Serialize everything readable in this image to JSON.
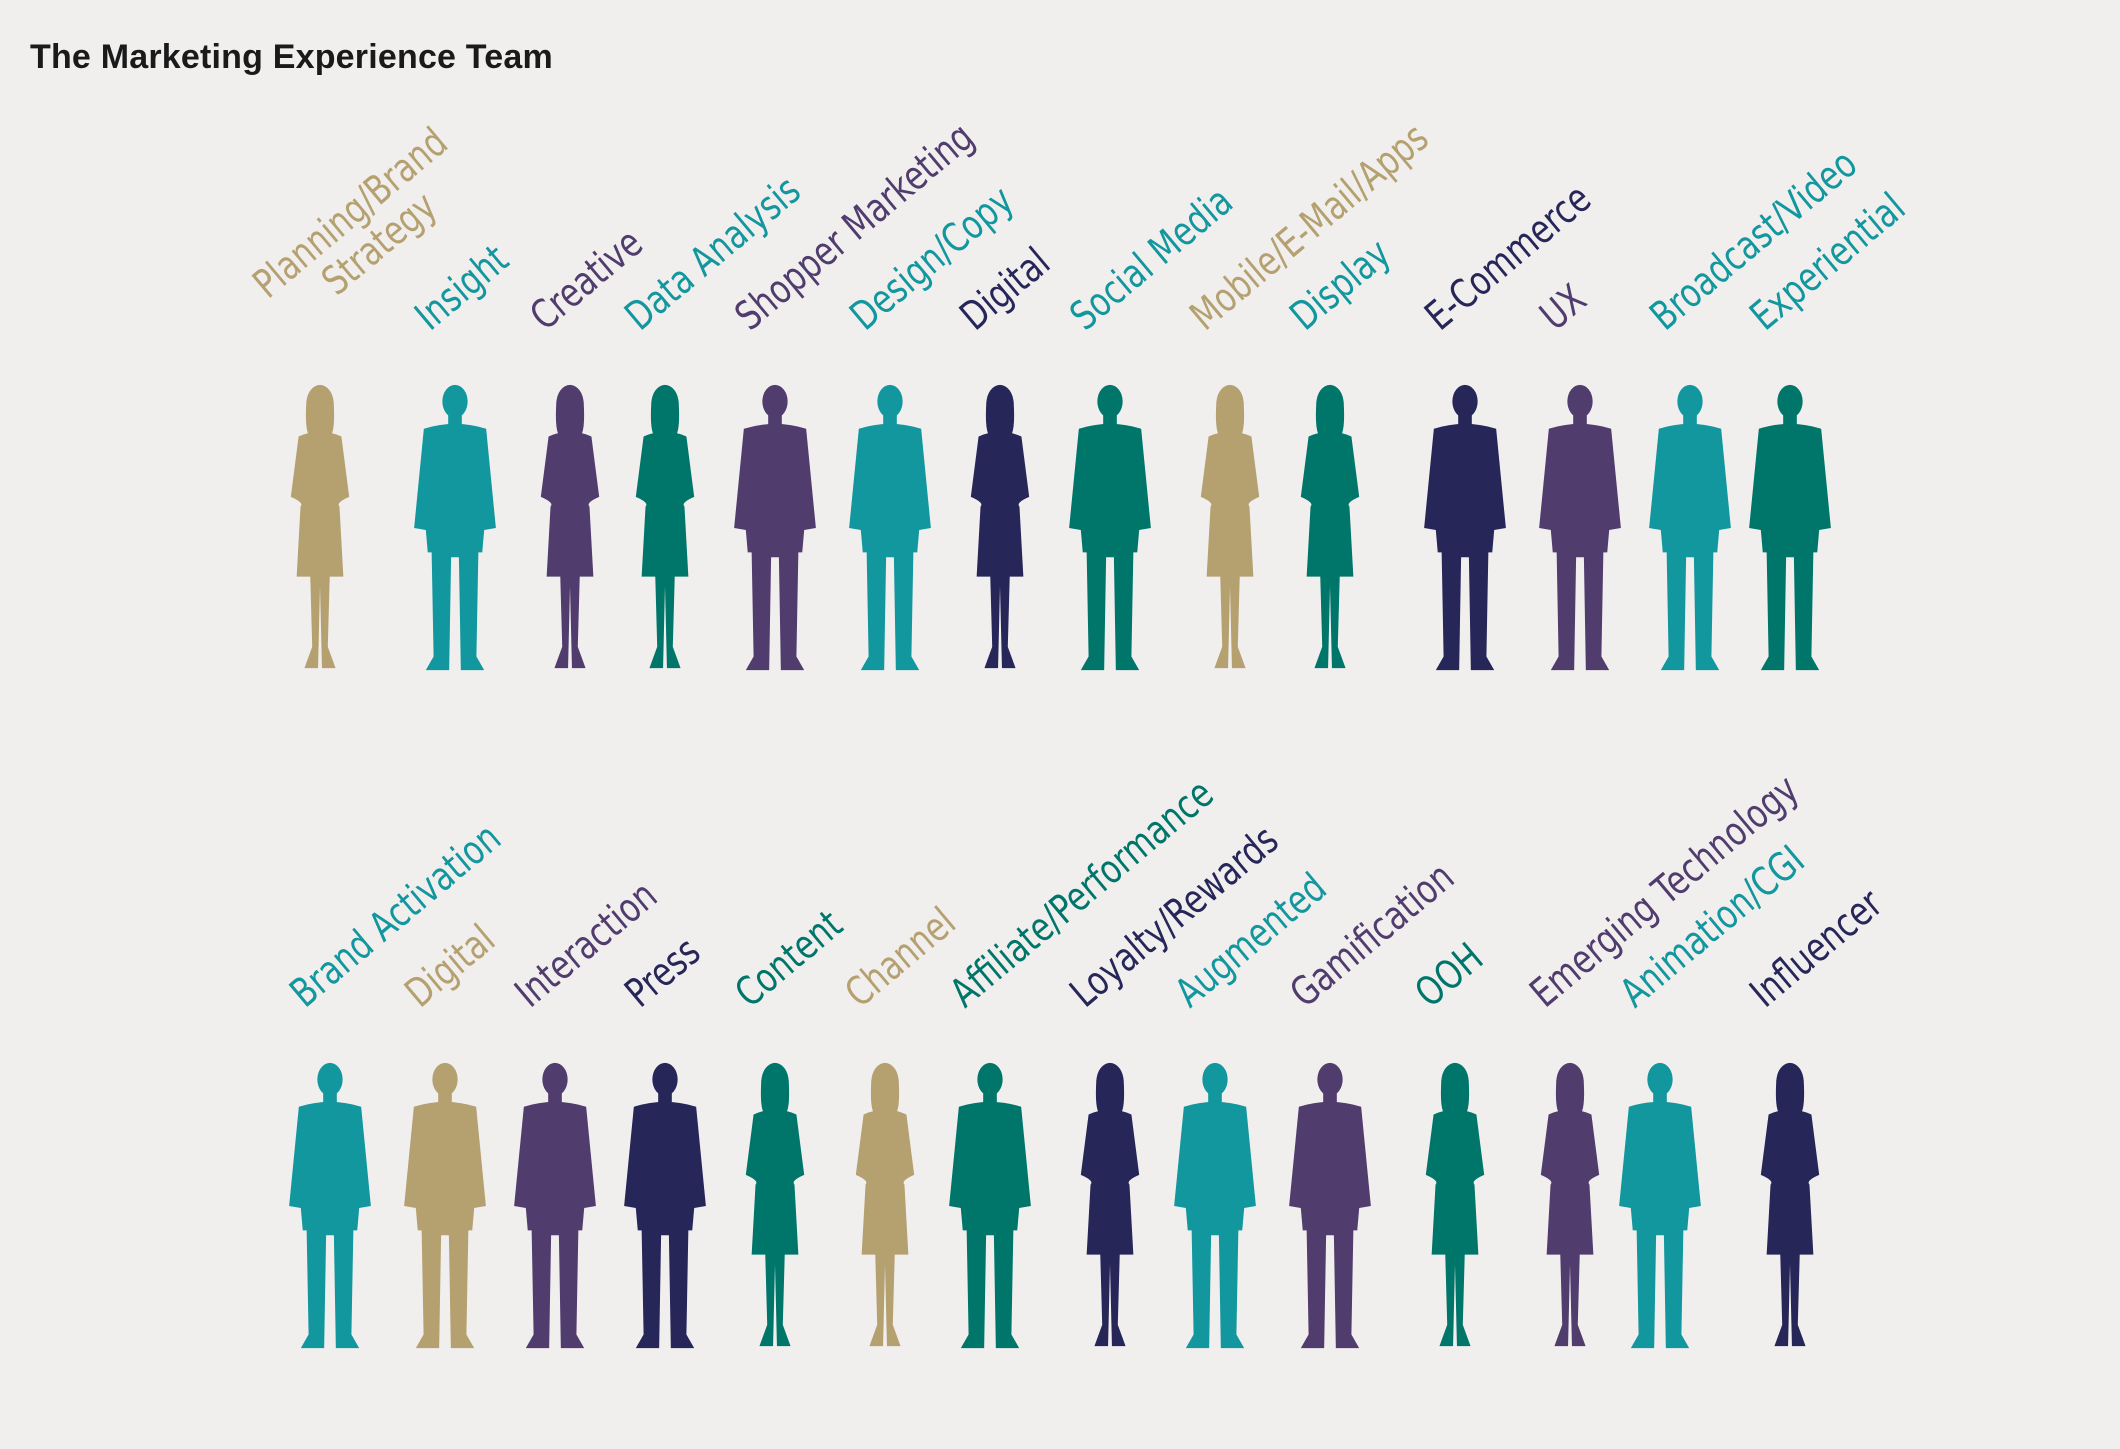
{
  "title": "The Marketing Experience Team",
  "colors": {
    "tan": "#b5a070",
    "teal": "#12979e",
    "purple": "#513c6e",
    "green": "#00766a",
    "navy": "#262659"
  },
  "row1": [
    {
      "label": [
        "Planning/Brand",
        "Strategy"
      ],
      "color": "tan",
      "gender": "f"
    },
    {
      "label": [
        "Insight"
      ],
      "color": "teal",
      "gender": "m"
    },
    {
      "label": [
        "Creative"
      ],
      "color": "purple",
      "gender": "f"
    },
    {
      "label": [
        "Data Analysis"
      ],
      "color": "teal",
      "gender": "f",
      "person_color": "green"
    },
    {
      "label": [
        "Shopper Marketing"
      ],
      "color": "purple",
      "gender": "m"
    },
    {
      "label": [
        "Design/Copy"
      ],
      "color": "teal",
      "gender": "m"
    },
    {
      "label": [
        "Digital"
      ],
      "color": "navy",
      "gender": "f"
    },
    {
      "label": [
        "Social Media"
      ],
      "color": "teal",
      "gender": "m",
      "person_color": "green"
    },
    {
      "label": [
        "Mobile/E-Mail/Apps"
      ],
      "color": "tan",
      "gender": "f"
    },
    {
      "label": [
        "Display"
      ],
      "color": "teal",
      "gender": "f",
      "person_color": "green"
    },
    {
      "label": [
        "E-Commerce"
      ],
      "color": "navy",
      "gender": "m"
    },
    {
      "label": [
        "UX"
      ],
      "color": "purple",
      "gender": "m"
    },
    {
      "label": [
        "Broadcast/Video"
      ],
      "color": "teal",
      "gender": "m"
    },
    {
      "label": [
        "Experiential"
      ],
      "color": "teal",
      "gender": "m",
      "person_color": "green"
    }
  ],
  "row2": [
    {
      "label": [
        "Brand Activation"
      ],
      "color": "teal",
      "gender": "m"
    },
    {
      "label": [
        "Digital"
      ],
      "color": "tan",
      "gender": "m"
    },
    {
      "label": [
        "Interaction"
      ],
      "color": "purple",
      "gender": "m"
    },
    {
      "label": [
        "Press"
      ],
      "color": "navy",
      "gender": "m"
    },
    {
      "label": [
        "Content"
      ],
      "color": "green",
      "gender": "f"
    },
    {
      "label": [
        "Channel"
      ],
      "color": "tan",
      "gender": "f"
    },
    {
      "label": [
        "Affiliate/Performance"
      ],
      "color": "green",
      "gender": "m"
    },
    {
      "label": [
        "Loyalty/Rewards"
      ],
      "color": "navy",
      "gender": "f"
    },
    {
      "label": [
        "Augmented"
      ],
      "color": "teal",
      "gender": "m"
    },
    {
      "label": [
        "Gamification"
      ],
      "color": "purple",
      "gender": "m"
    },
    {
      "label": [
        "OOH"
      ],
      "color": "green",
      "gender": "f"
    },
    {
      "label": [
        "Emerging Technology"
      ],
      "color": "purple",
      "gender": "f"
    },
    {
      "label": [
        "Animation/CGI"
      ],
      "color": "teal",
      "gender": "m"
    },
    {
      "label": [
        "Influencer"
      ],
      "color": "navy",
      "gender": "f"
    }
  ]
}
